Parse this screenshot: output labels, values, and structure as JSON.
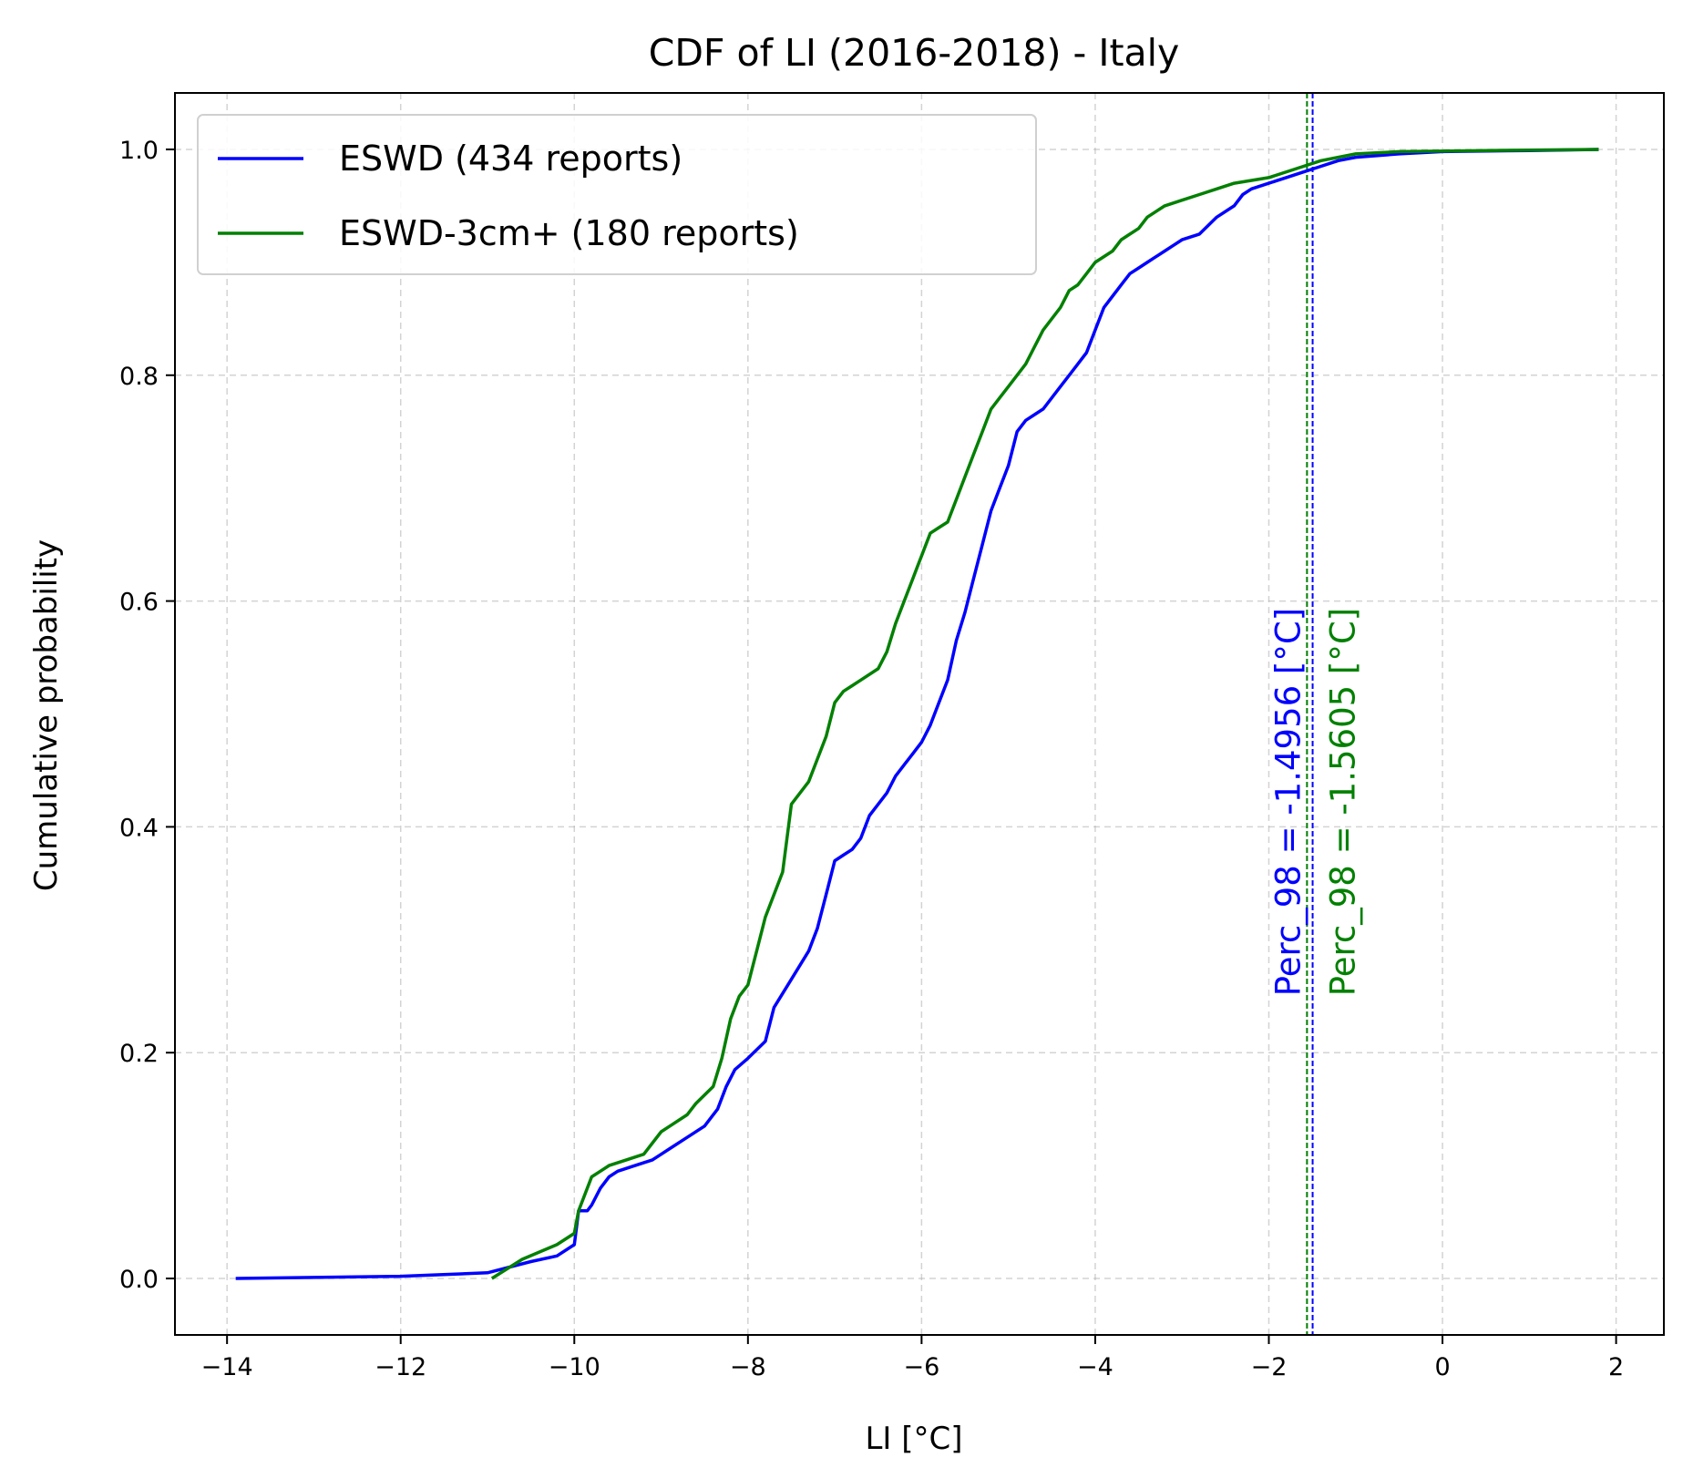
{
  "chart_data": {
    "type": "line",
    "title": "CDF of LI (2016-2018) - Italy",
    "xlabel": "LI [°C]",
    "ylabel": "Cumulative probability",
    "xlim": [
      -14.6,
      2.55
    ],
    "ylim": [
      -0.05,
      1.05
    ],
    "xticks": [
      -14,
      -12,
      -10,
      -8,
      -6,
      -4,
      -2,
      0,
      2
    ],
    "xtick_labels": [
      "−14",
      "−12",
      "−10",
      "−8",
      "−6",
      "−4",
      "−2",
      "0",
      "2"
    ],
    "yticks": [
      0.0,
      0.2,
      0.4,
      0.6,
      0.8,
      1.0
    ],
    "ytick_labels": [
      "0.0",
      "0.2",
      "0.4",
      "0.6",
      "0.8",
      "1.0"
    ],
    "grid": true,
    "legend_position": "top-left",
    "series": [
      {
        "name": "ESWD (434 reports)",
        "color": "#0000ff",
        "x": [
          -13.9,
          -12.0,
          -11.0,
          -10.5,
          -10.2,
          -10.0,
          -9.95,
          -9.85,
          -9.8,
          -9.7,
          -9.6,
          -9.5,
          -9.3,
          -9.1,
          -9.0,
          -8.9,
          -8.7,
          -8.5,
          -8.35,
          -8.25,
          -8.15,
          -8.0,
          -7.8,
          -7.7,
          -7.5,
          -7.3,
          -7.2,
          -7.1,
          -7.0,
          -6.9,
          -6.8,
          -6.7,
          -6.6,
          -6.4,
          -6.3,
          -6.2,
          -6.1,
          -6.0,
          -5.9,
          -5.8,
          -5.7,
          -5.6,
          -5.5,
          -5.4,
          -5.3,
          -5.2,
          -5.1,
          -5.0,
          -4.9,
          -4.8,
          -4.7,
          -4.6,
          -4.5,
          -4.4,
          -4.3,
          -4.2,
          -4.1,
          -4.0,
          -3.9,
          -3.8,
          -3.7,
          -3.6,
          -3.5,
          -3.4,
          -3.3,
          -3.2,
          -3.1,
          -3.0,
          -2.8,
          -2.6,
          -2.4,
          -2.3,
          -2.2,
          -2.0,
          -1.8,
          -1.6,
          -1.4,
          -1.2,
          -1.0,
          -0.5,
          0.0,
          1.0,
          1.8
        ],
        "y": [
          0.0,
          0.002,
          0.005,
          0.015,
          0.02,
          0.03,
          0.06,
          0.06,
          0.065,
          0.08,
          0.09,
          0.095,
          0.1,
          0.105,
          0.11,
          0.115,
          0.125,
          0.135,
          0.15,
          0.17,
          0.185,
          0.195,
          0.21,
          0.24,
          0.265,
          0.29,
          0.31,
          0.34,
          0.37,
          0.375,
          0.38,
          0.39,
          0.41,
          0.43,
          0.445,
          0.455,
          0.465,
          0.475,
          0.49,
          0.51,
          0.53,
          0.565,
          0.59,
          0.62,
          0.65,
          0.68,
          0.7,
          0.72,
          0.75,
          0.76,
          0.765,
          0.77,
          0.78,
          0.79,
          0.8,
          0.81,
          0.82,
          0.84,
          0.86,
          0.87,
          0.88,
          0.89,
          0.895,
          0.9,
          0.905,
          0.91,
          0.915,
          0.92,
          0.925,
          0.94,
          0.95,
          0.96,
          0.965,
          0.97,
          0.975,
          0.98,
          0.985,
          0.99,
          0.993,
          0.996,
          0.998,
          0.999,
          1.0
        ]
      },
      {
        "name": "ESWD-3cm+ (180 reports)",
        "color": "#008000",
        "x": [
          -10.95,
          -10.6,
          -10.2,
          -10.0,
          -9.95,
          -9.8,
          -9.7,
          -9.6,
          -9.4,
          -9.2,
          -9.0,
          -8.9,
          -8.7,
          -8.6,
          -8.4,
          -8.3,
          -8.2,
          -8.1,
          -8.0,
          -7.9,
          -7.8,
          -7.7,
          -7.6,
          -7.55,
          -7.5,
          -7.4,
          -7.3,
          -7.2,
          -7.1,
          -7.0,
          -6.9,
          -6.8,
          -6.7,
          -6.5,
          -6.4,
          -6.3,
          -6.2,
          -6.1,
          -6.05,
          -6.0,
          -5.9,
          -5.8,
          -5.7,
          -5.6,
          -5.5,
          -5.4,
          -5.3,
          -5.2,
          -5.1,
          -5.0,
          -4.9,
          -4.8,
          -4.7,
          -4.6,
          -4.5,
          -4.4,
          -4.3,
          -4.2,
          -4.1,
          -4.0,
          -3.8,
          -3.7,
          -3.6,
          -3.5,
          -3.4,
          -3.2,
          -3.0,
          -2.8,
          -2.6,
          -2.4,
          -2.0,
          -1.6,
          -1.4,
          -1.2,
          -1.0,
          -0.5,
          0.5,
          1.8
        ],
        "y": [
          0.0,
          0.017,
          0.03,
          0.04,
          0.06,
          0.09,
          0.095,
          0.1,
          0.105,
          0.11,
          0.13,
          0.135,
          0.145,
          0.155,
          0.17,
          0.195,
          0.23,
          0.25,
          0.26,
          0.29,
          0.32,
          0.34,
          0.36,
          0.39,
          0.42,
          0.43,
          0.44,
          0.46,
          0.48,
          0.51,
          0.52,
          0.525,
          0.53,
          0.54,
          0.555,
          0.58,
          0.6,
          0.62,
          0.63,
          0.64,
          0.66,
          0.665,
          0.67,
          0.69,
          0.71,
          0.73,
          0.75,
          0.77,
          0.78,
          0.79,
          0.8,
          0.81,
          0.825,
          0.84,
          0.85,
          0.86,
          0.875,
          0.88,
          0.89,
          0.9,
          0.91,
          0.92,
          0.925,
          0.93,
          0.94,
          0.95,
          0.955,
          0.96,
          0.965,
          0.97,
          0.975,
          0.985,
          0.99,
          0.993,
          0.996,
          0.998,
          0.999,
          1.0
        ]
      }
    ],
    "vlines": [
      {
        "x": -1.4956,
        "color": "#0000ff",
        "label": "Perc_98 = -1.4956 [°C]"
      },
      {
        "x": -1.5605,
        "color": "#008000",
        "label": "Perc_98 = -1.5605 [°C]"
      }
    ]
  }
}
